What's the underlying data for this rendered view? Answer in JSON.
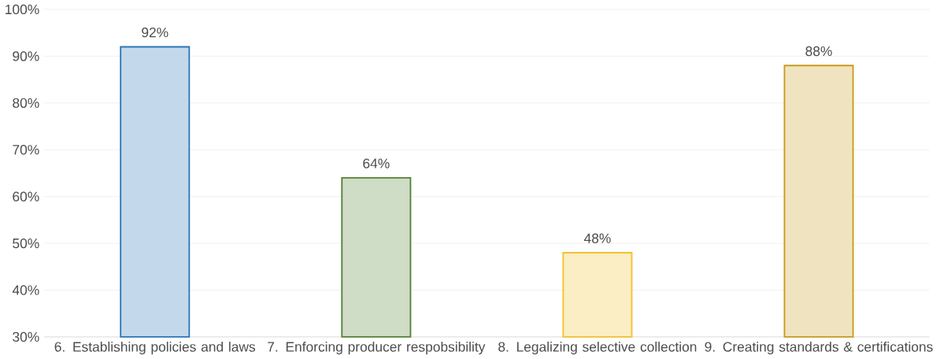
{
  "chart_data": {
    "type": "bar",
    "categories": [
      "6. Establishing policies and laws",
      "7. Enforcing producer respobsibility",
      "8. Legalizing selective collection",
      "9. Creating standards & certifications"
    ],
    "values": [
      92,
      64,
      48,
      88
    ],
    "colors": [
      "#2e75b6",
      "#548235",
      "#f2c12e",
      "#c99a1e"
    ],
    "value_labels": [
      "92%",
      "64%",
      "48%",
      "88%"
    ],
    "ylim": [
      30,
      100
    ],
    "yticks": [
      {
        "value": 30,
        "label": "30%"
      },
      {
        "value": 40,
        "label": "40%"
      },
      {
        "value": 50,
        "label": "50%"
      },
      {
        "value": 60,
        "label": "60%"
      },
      {
        "value": 70,
        "label": "70%"
      },
      {
        "value": 80,
        "label": "80%"
      },
      {
        "value": 90,
        "label": "90%"
      },
      {
        "value": 100,
        "label": "100%"
      }
    ],
    "grid": "y"
  }
}
